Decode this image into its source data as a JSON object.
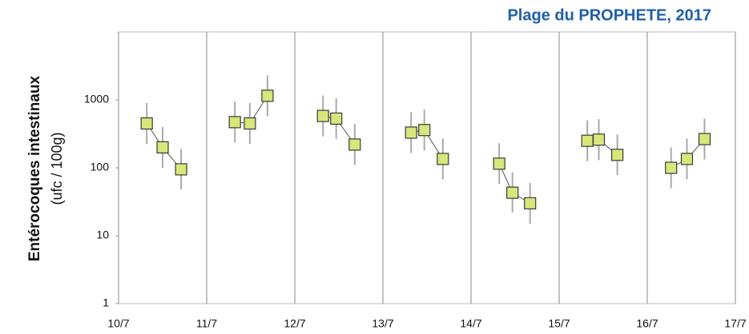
{
  "chart_data": {
    "type": "scatter",
    "title": "Plage du PROPHETE, 2017",
    "ylabel": "Entérocoques intestinaux",
    "ylabel_unit": "(ufc / 100g)",
    "log_y": true,
    "ylim": [
      1,
      10000
    ],
    "yticks": [
      1,
      10,
      100,
      1000
    ],
    "xlim": [
      10,
      17
    ],
    "xticks": [
      {
        "value": 10,
        "label": "10/7"
      },
      {
        "value": 11,
        "label": "11/7"
      },
      {
        "value": 12,
        "label": "12/7"
      },
      {
        "value": 13,
        "label": "13/7"
      },
      {
        "value": 14,
        "label": "14/7"
      },
      {
        "value": 15,
        "label": "15/7"
      },
      {
        "value": 16,
        "label": "16/7"
      },
      {
        "value": 17,
        "label": "17/7"
      }
    ],
    "x_grid": true,
    "series": [
      {
        "color": "#d8e67a",
        "edge_color": "#3a3a3a",
        "x": [
          10.32,
          10.5,
          10.71,
          null,
          11.32,
          11.49,
          11.69,
          null,
          12.32,
          12.47,
          12.68,
          null,
          13.32,
          13.47,
          13.68,
          null,
          14.32,
          14.47,
          14.67,
          null,
          15.32,
          15.45,
          15.66,
          null,
          16.27,
          16.45,
          16.65
        ],
        "values": [
          450,
          200,
          95,
          null,
          470,
          450,
          1150,
          null,
          580,
          530,
          220,
          null,
          330,
          360,
          135,
          null,
          115,
          43,
          30,
          null,
          250,
          260,
          155,
          null,
          100,
          135,
          265
        ],
        "upper": [
          900,
          400,
          190,
          null,
          940,
          900,
          2300,
          null,
          1160,
          1060,
          440,
          null,
          660,
          720,
          270,
          null,
          230,
          86,
          60,
          null,
          500,
          520,
          310,
          null,
          200,
          270,
          530
        ],
        "lower": [
          225,
          100,
          48,
          null,
          235,
          225,
          575,
          null,
          290,
          265,
          110,
          null,
          165,
          180,
          68,
          null,
          58,
          22,
          15,
          null,
          125,
          130,
          78,
          null,
          50,
          68,
          133
        ]
      }
    ]
  }
}
